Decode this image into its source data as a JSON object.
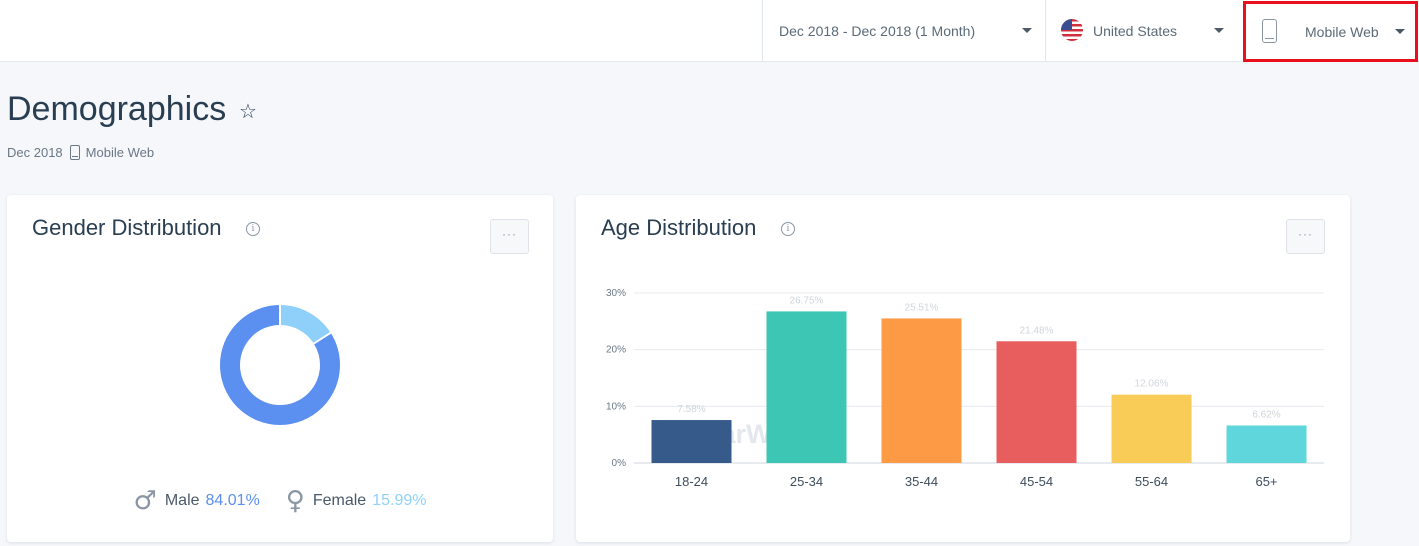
{
  "filters": {
    "date_range": "Dec 2018 - Dec 2018 (1 Month)",
    "country": "United States",
    "device": "Mobile Web"
  },
  "page": {
    "title": "Demographics",
    "period": "Dec 2018",
    "device": "Mobile Web"
  },
  "gender_card": {
    "title": "Gender Distribution",
    "more_label": "···",
    "male_label": "Male",
    "male_value": "84.01%",
    "female_label": "Female",
    "female_value": "15.99%",
    "colors": {
      "male": "#5b8ff0",
      "female": "#8fd0fa"
    }
  },
  "age_card": {
    "title": "Age Distribution",
    "more_label": "···",
    "watermark": "SimilarWeb"
  },
  "chart_data": [
    {
      "type": "pie",
      "categories": [
        "Male",
        "Female"
      ],
      "values": [
        84.01,
        15.99
      ],
      "colors": [
        "#5b8ff0",
        "#8fd0fa"
      ],
      "title": ""
    },
    {
      "type": "bar",
      "categories": [
        "18-24",
        "25-34",
        "35-44",
        "45-54",
        "55-64",
        "65+"
      ],
      "values": [
        7.58,
        26.75,
        25.51,
        21.48,
        12.06,
        6.62
      ],
      "value_labels": [
        "7.58%",
        "26.75%",
        "25.51%",
        "21.48%",
        "12.06%",
        "6.62%"
      ],
      "colors": [
        "#365a8a",
        "#3ec6b5",
        "#fd9a45",
        "#e85d5e",
        "#f9cc57",
        "#5ed6db"
      ],
      "y_ticks": [
        "0%",
        "10%",
        "20%",
        "30%"
      ],
      "y_tick_values": [
        0,
        10,
        20,
        30
      ],
      "ylim": [
        0,
        30
      ],
      "grid": true,
      "title": "",
      "xlabel": "",
      "ylabel": ""
    }
  ]
}
